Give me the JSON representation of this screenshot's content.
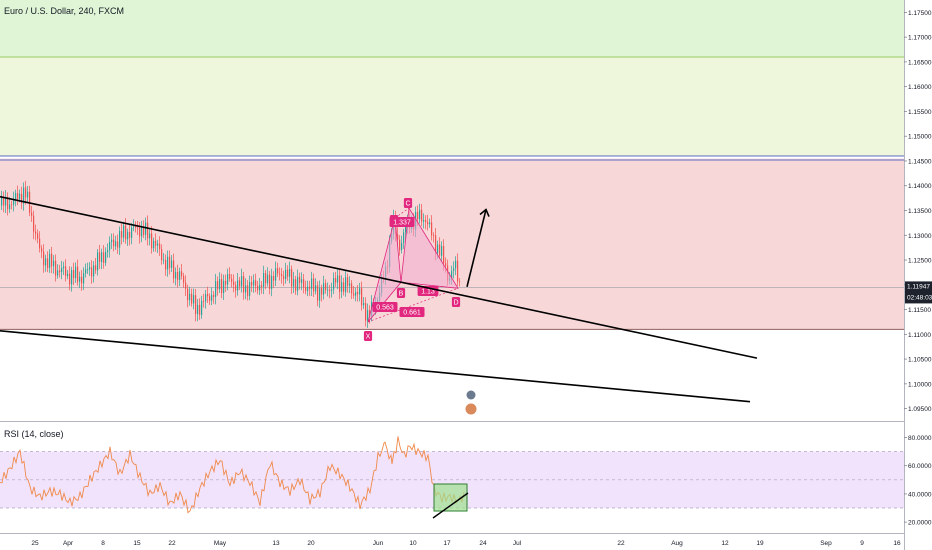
{
  "header": {
    "symbol": "Euro / U.S. Dollar, 240, FXCM"
  },
  "rsi_label": "RSI (14, close)",
  "price_badge": {
    "price": "1.11947",
    "time": "02:48:03"
  },
  "colors": {
    "up": "#26a69a",
    "down": "#ef5350",
    "zone_green": "#dff5d6",
    "zone_lightgreen": "#eef6dc",
    "zone_red": "#f7d7d8",
    "pattern": "#e1287e",
    "pattern_fill": "#f3a9cf",
    "rsi_line": "#f0894a",
    "rsi_band": "#f1e3fb",
    "badge": "#1e222d"
  },
  "pattern_labels": {
    "X": "X",
    "A": "A",
    "B": "B",
    "C": "C",
    "D": "D",
    "xb": "0.563",
    "ac": "1.337",
    "bd": "1.13",
    "xd": "0.661"
  },
  "chart_data": [
    {
      "type": "candlestick",
      "title": "Euro / U.S. Dollar, 240, FXCM",
      "ylim": [
        1.0925,
        1.1775
      ],
      "y_ticks": [
        "1.17500",
        "1.17000",
        "1.16500",
        "1.16000",
        "1.15500",
        "1.15000",
        "1.14500",
        "1.14000",
        "1.13500",
        "1.13000",
        "1.12500",
        "1.12000",
        "1.11500",
        "1.11000",
        "1.10500",
        "1.10000",
        "1.09500"
      ],
      "x_tick_labels": [
        "25",
        "Apr",
        "8",
        "15",
        "22",
        "May",
        "13",
        "20",
        "Jun",
        "10",
        "17",
        "24",
        "Jul",
        "22",
        "Aug",
        "12",
        "19",
        "Sep",
        "9",
        "16"
      ],
      "last_price": 1.11947,
      "zones": [
        {
          "color": "green",
          "from": 1.166,
          "to": 1.1775
        },
        {
          "color": "lightgreen",
          "from": 1.146,
          "to": 1.166
        },
        {
          "color": "red",
          "from": 1.111,
          "to": 1.1455
        }
      ],
      "close_path": [
        [
          0,
          1.136
        ],
        [
          14,
          1.137
        ],
        [
          24,
          1.139
        ],
        [
          32,
          1.133
        ],
        [
          40,
          1.126
        ],
        [
          54,
          1.1235
        ],
        [
          68,
          1.122
        ],
        [
          80,
          1.1215
        ],
        [
          95,
          1.124
        ],
        [
          110,
          1.128
        ],
        [
          125,
          1.1305
        ],
        [
          140,
          1.1315
        ],
        [
          152,
          1.129
        ],
        [
          165,
          1.1245
        ],
        [
          180,
          1.1215
        ],
        [
          195,
          1.115
        ],
        [
          210,
          1.118
        ],
        [
          225,
          1.121
        ],
        [
          245,
          1.1195
        ],
        [
          258,
          1.12
        ],
        [
          272,
          1.1215
        ],
        [
          282,
          1.1225
        ],
        [
          295,
          1.1205
        ],
        [
          310,
          1.1195
        ],
        [
          322,
          1.1185
        ],
        [
          335,
          1.1205
        ],
        [
          345,
          1.12
        ],
        [
          358,
          1.118
        ],
        [
          368,
          1.1135
        ],
        [
          375,
          1.1165
        ],
        [
          385,
          1.1225
        ],
        [
          392,
          1.133
        ],
        [
          398,
          1.1275
        ],
        [
          405,
          1.1315
        ],
        [
          415,
          1.1335
        ],
        [
          425,
          1.1335
        ],
        [
          432,
          1.1295
        ],
        [
          440,
          1.1265
        ],
        [
          448,
          1.1215
        ],
        [
          455,
          1.1235
        ],
        [
          460,
          1.1195
        ]
      ],
      "harmonic_pattern": {
        "points": [
          {
            "name": "X",
            "value": 1.1125
          },
          {
            "name": "A",
            "value": 1.1335
          },
          {
            "name": "B",
            "value": 1.1205
          },
          {
            "name": "C",
            "value": 1.1355
          },
          {
            "name": "D",
            "value": 1.1193
          }
        ],
        "ratios": {
          "XB": 0.563,
          "AC": 1.337,
          "BD": 1.13,
          "XD": 0.661
        }
      },
      "trendlines": [
        {
          "from": [
            0,
            1.1378
          ],
          "to": [
            757,
            1.1052
          ]
        },
        {
          "from": [
            0,
            1.1107
          ],
          "to": [
            750,
            1.0964
          ]
        }
      ],
      "projection_arrow": {
        "from": [
          467,
          1.1196
        ],
        "to": [
          486,
          1.1352
        ]
      }
    },
    {
      "type": "line",
      "title": "RSI (14, close)",
      "ylim": [
        13,
        91
      ],
      "y_ticks": [
        "80.0000",
        "60.0000",
        "40.0000",
        "20.0000"
      ],
      "band": [
        30,
        70
      ],
      "series": [
        {
          "values": [
            [
              0,
              48
            ],
            [
              10,
              58
            ],
            [
              20,
              70
            ],
            [
              30,
              44
            ],
            [
              40,
              38
            ],
            [
              50,
              42
            ],
            [
              60,
              40
            ],
            [
              70,
              34
            ],
            [
              80,
              38
            ],
            [
              90,
              50
            ],
            [
              100,
              60
            ],
            [
              110,
              70
            ],
            [
              120,
              54
            ],
            [
              130,
              68
            ],
            [
              140,
              52
            ],
            [
              150,
              40
            ],
            [
              160,
              46
            ],
            [
              170,
              33
            ],
            [
              180,
              40
            ],
            [
              190,
              27
            ],
            [
              200,
              44
            ],
            [
              210,
              56
            ],
            [
              220,
              64
            ],
            [
              230,
              47
            ],
            [
              240,
              56
            ],
            [
              250,
              48
            ],
            [
              260,
              34
            ],
            [
              270,
              62
            ],
            [
              280,
              48
            ],
            [
              290,
              42
            ],
            [
              300,
              50
            ],
            [
              310,
              36
            ],
            [
              320,
              41
            ],
            [
              330,
              60
            ],
            [
              340,
              54
            ],
            [
              350,
              45
            ],
            [
              360,
              32
            ],
            [
              370,
              43
            ],
            [
              378,
              66
            ],
            [
              385,
              75
            ],
            [
              392,
              62
            ],
            [
              398,
              78
            ],
            [
              404,
              67
            ],
            [
              410,
              74
            ],
            [
              418,
              70
            ],
            [
              428,
              66
            ],
            [
              434,
              43
            ],
            [
              442,
              37
            ],
            [
              450,
              38
            ],
            [
              458,
              35
            ],
            [
              465,
              39
            ]
          ]
        }
      ]
    }
  ]
}
